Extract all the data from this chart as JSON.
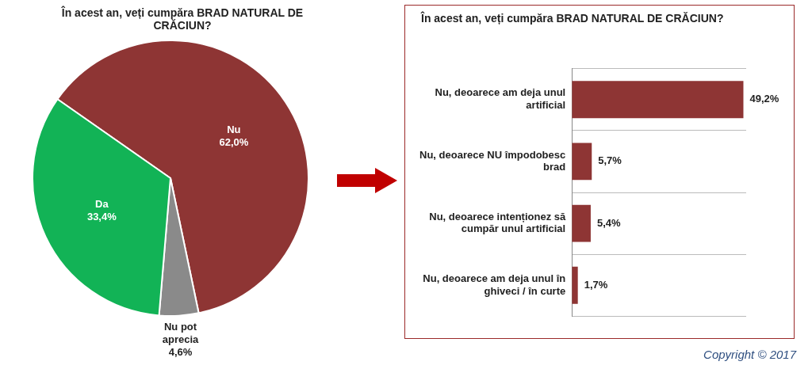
{
  "chart_data": [
    {
      "type": "pie",
      "title": "În acest an, veți cumpăra BRAD NATURAL DE CRĂCIUN?",
      "categories": [
        "Nu",
        "Nu pot aprecia",
        "Da"
      ],
      "values": [
        62.0,
        4.6,
        33.4
      ],
      "colors": [
        "#8e3534",
        "#8a8a8a",
        "#12b356"
      ],
      "value_labels": [
        "62,0%",
        "4,6%",
        "33,4%"
      ]
    },
    {
      "type": "bar",
      "orientation": "horizontal",
      "title": "În acest an, veți cumpăra BRAD NATURAL DE CRĂCIUN?",
      "categories": [
        "Nu, deoarece am deja unul artificial",
        "Nu, deoarece NU împodobesc brad",
        "Nu, deoarece intenționez să cumpăr unul artificial",
        "Nu, deoarece am deja unul în ghiveci / în curte"
      ],
      "values": [
        49.2,
        5.7,
        5.4,
        1.7
      ],
      "color": "#8e3534",
      "value_labels": [
        "49,2%",
        "5,7%",
        "5,4%",
        "1,7%"
      ],
      "tick_labels": "y",
      "grid": "y",
      "annotations": [
        "Copyright © 2017"
      ]
    }
  ]
}
